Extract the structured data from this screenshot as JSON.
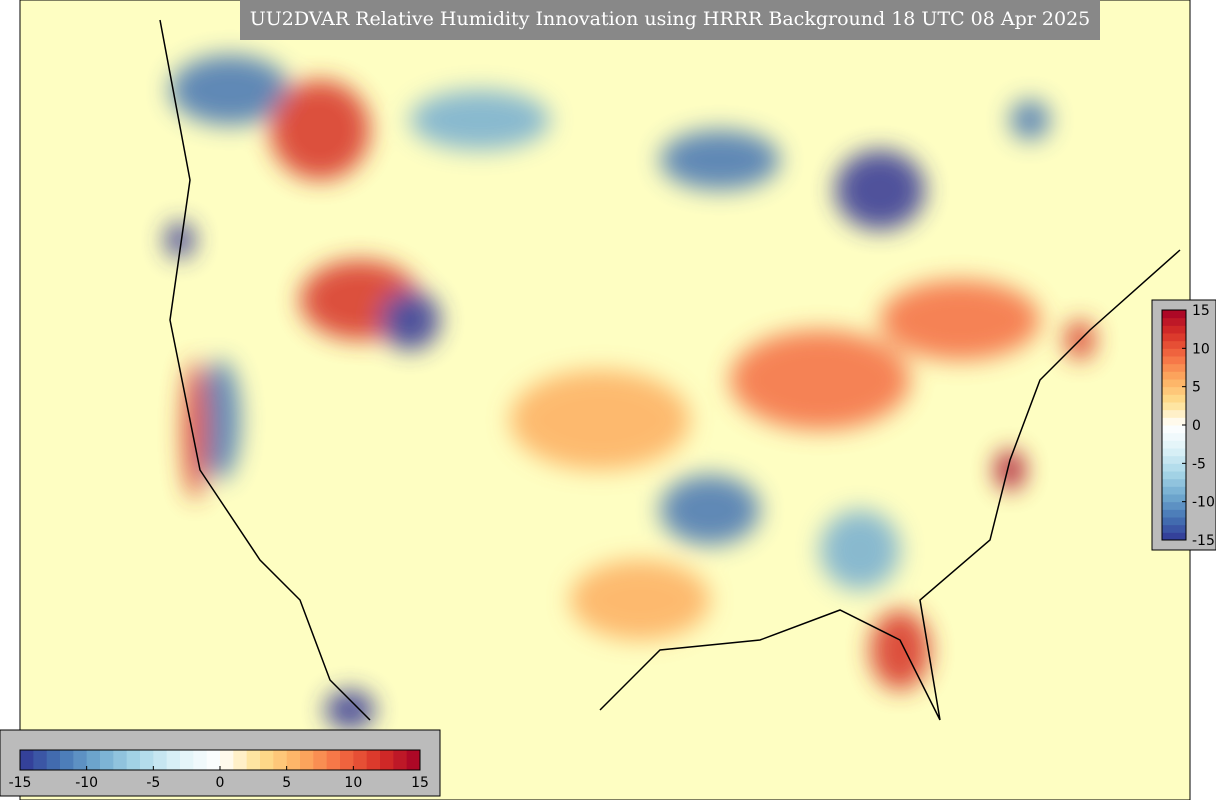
{
  "title": "UU2DVAR Relative Humidity Innovation using HRRR Background 18 UTC 08 Apr 2025",
  "colormap": [
    "#313695",
    "#4575b4",
    "#74add1",
    "#abd9e9",
    "#e0f3f8",
    "#ffffff",
    "#fee090",
    "#fdae61",
    "#f46d43",
    "#d73027",
    "#a50026"
  ],
  "colorbar_horizontal": {
    "lim": [
      -15,
      15
    ],
    "ticks": [
      -15,
      -10,
      -5,
      0,
      5,
      10,
      15
    ]
  },
  "colorbar_vertical": {
    "lim": [
      -15,
      15
    ],
    "ticks": [
      15,
      10,
      5,
      0,
      -5,
      -10,
      -15
    ]
  }
}
